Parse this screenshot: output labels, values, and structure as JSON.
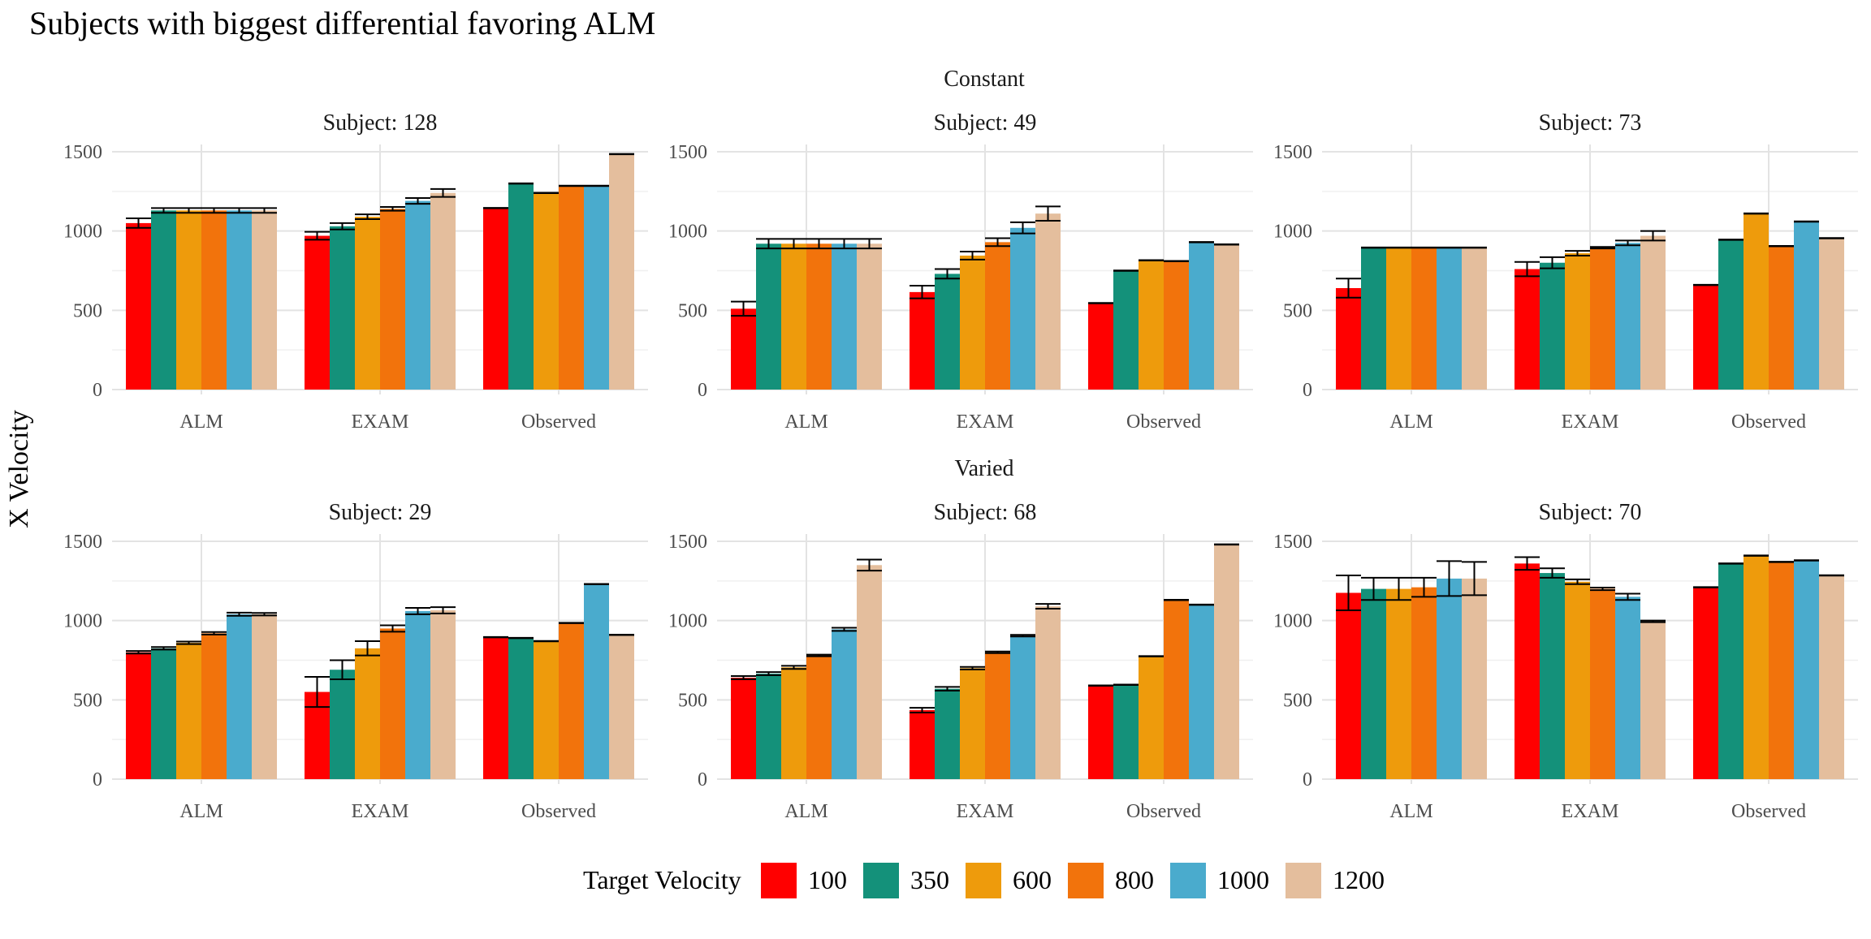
{
  "title": "Subjects with biggest differential favoring ALM",
  "y_axis_label": "X Velocity",
  "legend": {
    "title": "Target Velocity",
    "items": [
      {
        "label": "100",
        "color": "#FF0000"
      },
      {
        "label": "350",
        "color": "#14917A"
      },
      {
        "label": "600",
        "color": "#EE9B0C"
      },
      {
        "label": "800",
        "color": "#F2730C"
      },
      {
        "label": "1000",
        "color": "#4AABCD"
      },
      {
        "label": "1200",
        "color": "#E4BE9D"
      }
    ]
  },
  "chart_data": {
    "type": "bar",
    "facet_rows": [
      "Constant",
      "Varied"
    ],
    "categories": [
      "ALM",
      "EXAM",
      "Observed"
    ],
    "series_names": [
      "100",
      "350",
      "600",
      "800",
      "1000",
      "1200"
    ],
    "series_colors": [
      "#FF0000",
      "#14917A",
      "#EE9B0C",
      "#F2730C",
      "#4AABCD",
      "#E4BE9D"
    ],
    "ylim": [
      0,
      1550
    ],
    "yticks": [
      0,
      500,
      1000,
      1500
    ],
    "grid": true,
    "legend_position": "bottom",
    "panels": [
      {
        "row": "Constant",
        "subject": "Subject: 128",
        "values": [
          [
            1050,
            1130,
            1130,
            1130,
            1130,
            1130
          ],
          [
            970,
            1030,
            1090,
            1140,
            1190,
            1240
          ],
          [
            1145,
            1300,
            1240,
            1285,
            1285,
            1485
          ]
        ],
        "errors": [
          [
            30,
            15,
            15,
            15,
            15,
            15
          ],
          [
            25,
            20,
            15,
            12,
            18,
            25
          ],
          [
            0,
            0,
            0,
            0,
            0,
            0
          ]
        ]
      },
      {
        "row": "Constant",
        "subject": "Subject: 49",
        "values": [
          [
            510,
            920,
            920,
            920,
            920,
            920
          ],
          [
            615,
            730,
            845,
            930,
            1020,
            1110
          ],
          [
            545,
            750,
            815,
            810,
            930,
            915
          ]
        ],
        "errors": [
          [
            45,
            30,
            30,
            30,
            30,
            30
          ],
          [
            40,
            30,
            25,
            25,
            35,
            45
          ],
          [
            0,
            0,
            0,
            0,
            0,
            0
          ]
        ]
      },
      {
        "row": "Constant",
        "subject": "Subject: 73",
        "values": [
          [
            640,
            895,
            895,
            895,
            895,
            895
          ],
          [
            760,
            800,
            860,
            895,
            925,
            970
          ],
          [
            660,
            945,
            1110,
            905,
            1060,
            955
          ]
        ],
        "errors": [
          [
            60,
            0,
            0,
            0,
            0,
            0
          ],
          [
            45,
            35,
            15,
            5,
            15,
            30
          ],
          [
            0,
            0,
            0,
            0,
            0,
            0
          ]
        ]
      },
      {
        "row": "Varied",
        "subject": "Subject: 29",
        "values": [
          [
            800,
            825,
            860,
            920,
            1040,
            1040
          ],
          [
            550,
            690,
            825,
            950,
            1060,
            1065
          ],
          [
            895,
            890,
            870,
            985,
            1230,
            910
          ]
        ],
        "errors": [
          [
            8,
            8,
            8,
            8,
            10,
            8
          ],
          [
            95,
            60,
            45,
            20,
            20,
            20
          ],
          [
            0,
            0,
            0,
            0,
            0,
            0
          ]
        ]
      },
      {
        "row": "Varied",
        "subject": "Subject: 68",
        "values": [
          [
            640,
            665,
            705,
            780,
            945,
            1350
          ],
          [
            435,
            570,
            700,
            800,
            905,
            1090
          ],
          [
            590,
            595,
            775,
            1130,
            1100,
            1480
          ]
        ],
        "errors": [
          [
            10,
            10,
            10,
            5,
            10,
            35
          ],
          [
            15,
            12,
            8,
            5,
            5,
            15
          ],
          [
            0,
            0,
            0,
            0,
            0,
            0
          ]
        ]
      },
      {
        "row": "Varied",
        "subject": "Subject: 70",
        "values": [
          [
            1175,
            1200,
            1200,
            1210,
            1265,
            1265
          ],
          [
            1360,
            1300,
            1245,
            1200,
            1150,
            995
          ],
          [
            1210,
            1360,
            1410,
            1370,
            1380,
            1285
          ]
        ],
        "errors": [
          [
            110,
            70,
            70,
            60,
            110,
            105
          ],
          [
            40,
            30,
            15,
            8,
            20,
            5
          ],
          [
            0,
            0,
            0,
            0,
            0,
            0
          ]
        ]
      }
    ]
  }
}
